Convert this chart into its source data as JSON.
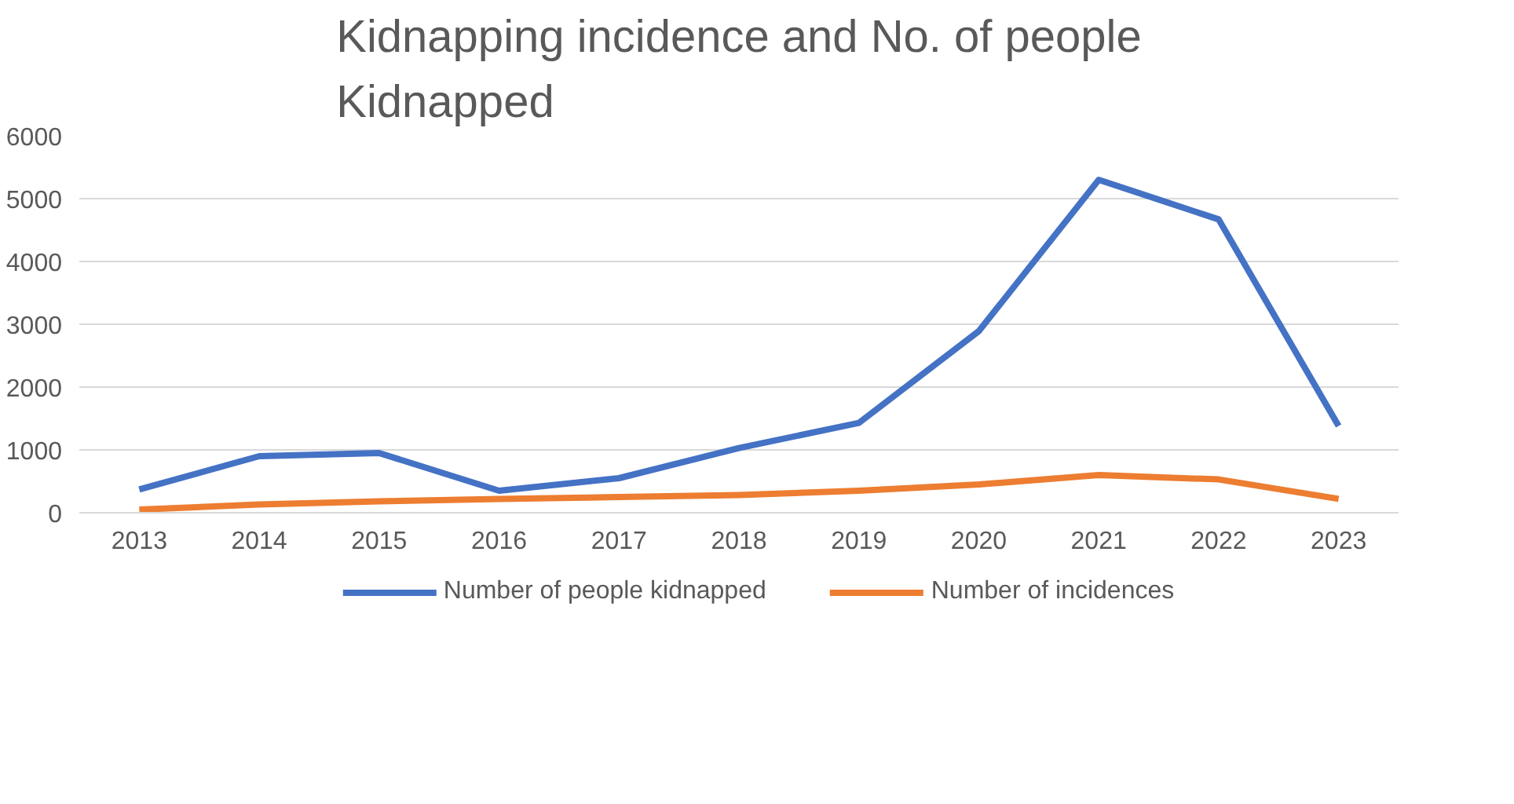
{
  "chart_data": {
    "type": "line",
    "title": "Kidnapping incidence and No. of people Kidnapped",
    "categories": [
      "2013",
      "2014",
      "2015",
      "2016",
      "2017",
      "2018",
      "2019",
      "2020",
      "2021",
      "2022",
      "2023"
    ],
    "series": [
      {
        "name": "Number of people kidnapped",
        "color": "#4472c4",
        "values": [
          370,
          900,
          950,
          350,
          550,
          1030,
          1430,
          2890,
          5300,
          4670,
          1380
        ]
      },
      {
        "name": "Number of incidences",
        "color": "#ed7d31",
        "values": [
          50,
          130,
          180,
          220,
          250,
          280,
          350,
          450,
          600,
          530,
          220
        ]
      }
    ],
    "ylim": [
      0,
      6000
    ],
    "yticks": [
      0,
      1000,
      2000,
      3000,
      4000,
      5000,
      6000
    ],
    "grid": "y",
    "legend": "bottom",
    "line_style": "solid",
    "marker": "none"
  }
}
